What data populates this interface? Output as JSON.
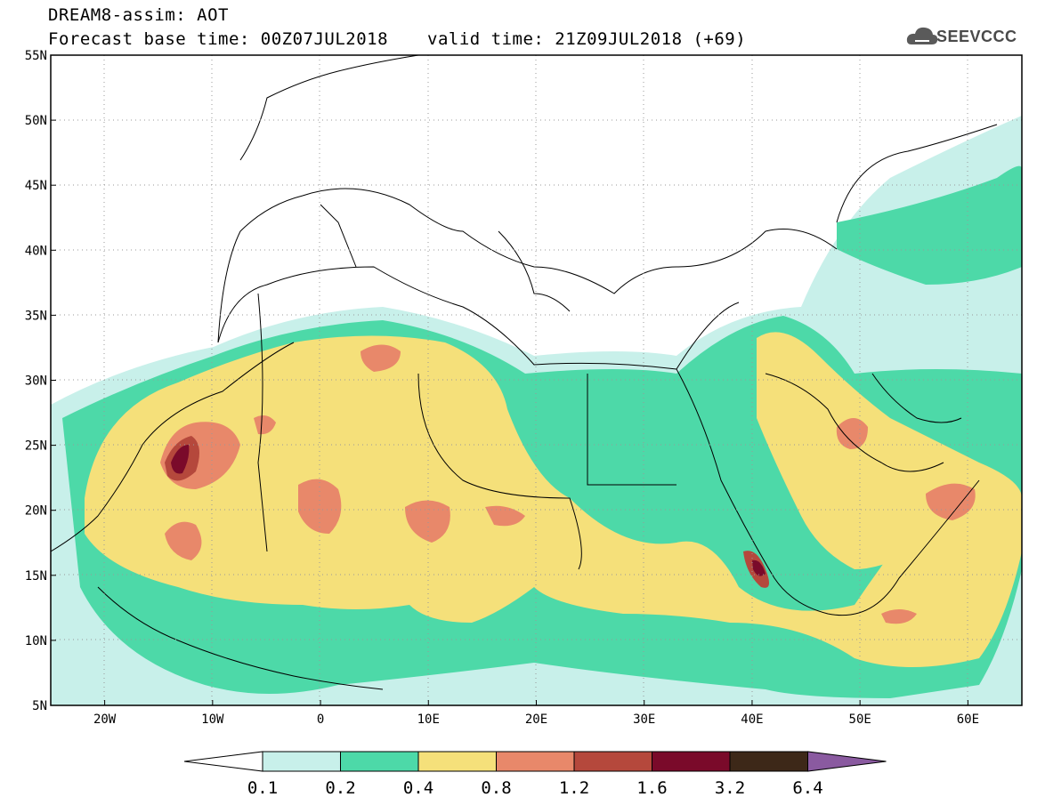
{
  "header": {
    "title": "DREAM8-assim: AOT",
    "base_time": "Forecast base time: 00Z07JUL2018",
    "valid_time": "valid time: 21Z09JUL2018 (+69)",
    "logo_text": "SEEVCCC"
  },
  "map": {
    "lon_range": [
      -25,
      65
    ],
    "lat_range": [
      5,
      55
    ],
    "lat_ticks": [
      "55N",
      "50N",
      "45N",
      "40N",
      "35N",
      "30N",
      "25N",
      "20N",
      "15N",
      "10N",
      "5N"
    ],
    "lon_ticks": [
      "20W",
      "10W",
      "0",
      "10E",
      "20E",
      "30E",
      "40E",
      "50E",
      "60E"
    ],
    "gridlines": "dotted"
  },
  "colorbar": {
    "labels": [
      "0.1",
      "0.2",
      "0.4",
      "0.8",
      "1.2",
      "1.6",
      "3.2",
      "6.4"
    ],
    "colors": [
      "#c8f0ea",
      "#4dd9a8",
      "#f5e07a",
      "#e8886a",
      "#b5483c",
      "#7a0a2a",
      "#3d2818",
      "#8a5aa0"
    ]
  }
}
